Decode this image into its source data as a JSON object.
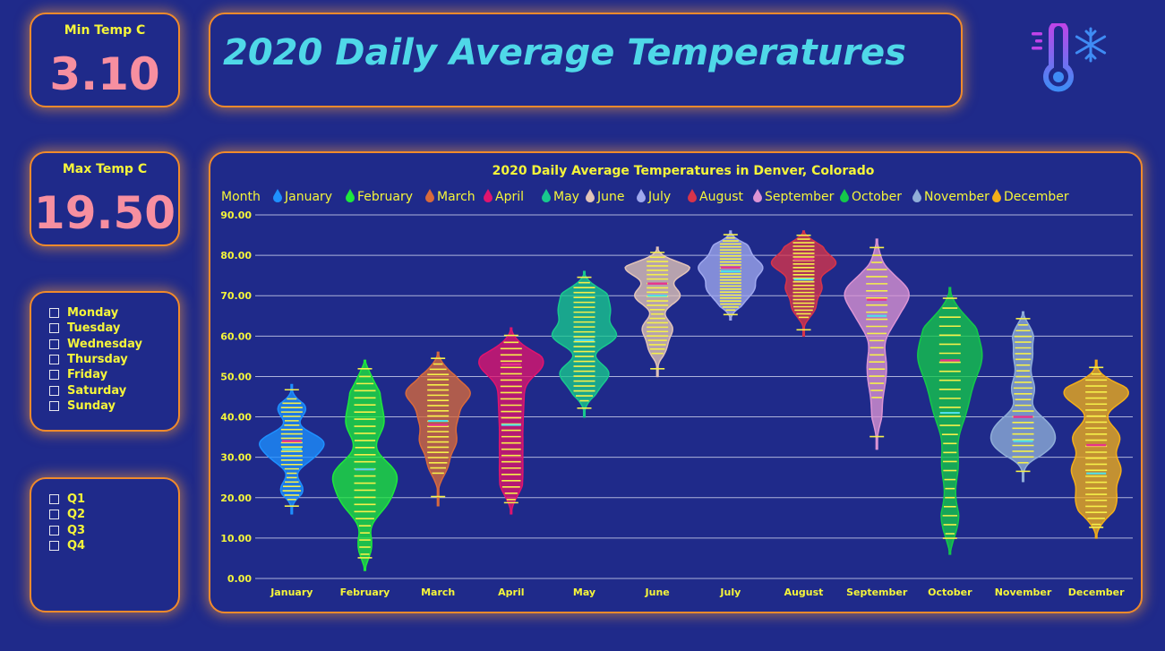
{
  "kpis": {
    "min_label": "Min Temp C",
    "min_value": "3.10",
    "max_label": "Max Temp C",
    "max_value": "19.50"
  },
  "header": {
    "title": "2020 Daily Average Temperatures"
  },
  "logo": {
    "icon": "thermometer-snowflake-icon"
  },
  "day_slicer": {
    "items": [
      "Monday",
      "Tuesday",
      "Wednesday",
      "Thursday",
      "Friday",
      "Saturday",
      "Sunday"
    ]
  },
  "quarter_slicer": {
    "items": [
      "Q1",
      "Q2",
      "Q3",
      "Q4"
    ]
  },
  "chart_data": {
    "type": "violin",
    "title": "2020 Daily Average Temperatures in Denver, Colorado",
    "legend_title": "Month",
    "legend_position": "top-left",
    "ylim": [
      0,
      90
    ],
    "yticks": [
      "0.00",
      "10.00",
      "20.00",
      "30.00",
      "40.00",
      "50.00",
      "60.00",
      "70.00",
      "80.00",
      "90.00"
    ],
    "grid": true,
    "categories": [
      "January",
      "February",
      "March",
      "April",
      "May",
      "June",
      "July",
      "August",
      "September",
      "October",
      "November",
      "December"
    ],
    "series": [
      {
        "name": "January",
        "color": "#1e90ff",
        "min": 16,
        "max": 48,
        "median": 34,
        "mean": 32,
        "modes": [
          [
            34,
            1.0
          ],
          [
            30,
            0.6
          ],
          [
            42,
            0.5
          ],
          [
            22,
            0.4
          ]
        ]
      },
      {
        "name": "February",
        "color": "#1ee83c",
        "min": 2,
        "max": 54,
        "median": 27,
        "mean": 27,
        "modes": [
          [
            26,
            1.0
          ],
          [
            19,
            0.7
          ],
          [
            38,
            0.6
          ],
          [
            45,
            0.4
          ],
          [
            52,
            0.35
          ],
          [
            6,
            0.35
          ]
        ]
      },
      {
        "name": "March",
        "color": "#d86a3c",
        "min": 18,
        "max": 56,
        "median": 38,
        "mean": 39,
        "modes": [
          [
            46,
            1.0
          ],
          [
            34,
            0.55
          ],
          [
            40,
            0.55
          ],
          [
            52,
            0.35
          ],
          [
            28,
            0.3
          ]
        ]
      },
      {
        "name": "April",
        "color": "#e0146e",
        "min": 16,
        "max": 62,
        "median": 53,
        "mean": 38,
        "modes": [
          [
            53,
            1.0
          ],
          [
            45,
            0.35
          ],
          [
            39,
            0.3
          ],
          [
            33,
            0.3
          ],
          [
            27,
            0.3
          ],
          [
            21,
            0.3
          ],
          [
            58,
            0.35
          ]
        ]
      },
      {
        "name": "May",
        "color": "#18c98e",
        "min": 40,
        "max": 76,
        "median": 59,
        "mean": 59,
        "modes": [
          [
            60,
            1.0
          ],
          [
            51,
            0.75
          ],
          [
            66,
            0.7
          ],
          [
            71,
            0.6
          ],
          [
            46,
            0.3
          ]
        ]
      },
      {
        "name": "June",
        "color": "#e2c4b8",
        "min": 50,
        "max": 82,
        "median": 73,
        "mean": 70,
        "modes": [
          [
            77,
            1.0
          ],
          [
            70,
            0.7
          ],
          [
            62,
            0.45
          ],
          [
            57,
            0.25
          ]
        ]
      },
      {
        "name": "July",
        "color": "#9fa8ee",
        "min": 64,
        "max": 86,
        "median": 77,
        "mean": 76,
        "modes": [
          [
            77,
            1.0
          ],
          [
            72,
            0.7
          ],
          [
            82,
            0.55
          ],
          [
            68,
            0.3
          ]
        ]
      },
      {
        "name": "August",
        "color": "#d8344a",
        "min": 60,
        "max": 86,
        "median": 79,
        "mean": 74,
        "modes": [
          [
            78,
            1.0
          ],
          [
            72,
            0.55
          ],
          [
            67,
            0.35
          ],
          [
            83,
            0.5
          ]
        ]
      },
      {
        "name": "September",
        "color": "#dc94d4",
        "min": 32,
        "max": 84,
        "median": 69,
        "mean": 65,
        "modes": [
          [
            71,
            1.0
          ],
          [
            64,
            0.5
          ],
          [
            54,
            0.25
          ],
          [
            48,
            0.2
          ],
          [
            40,
            0.15
          ],
          [
            81,
            0.2
          ]
        ]
      },
      {
        "name": "October",
        "color": "#14c94a",
        "min": 6,
        "max": 72,
        "median": 54,
        "mean": 41,
        "modes": [
          [
            55,
            1.0
          ],
          [
            64,
            0.75
          ],
          [
            47,
            0.5
          ],
          [
            40,
            0.4
          ],
          [
            28,
            0.3
          ],
          [
            15,
            0.25
          ],
          [
            9,
            0.25
          ]
        ]
      },
      {
        "name": "November",
        "color": "#90aed8",
        "min": 24,
        "max": 66,
        "median": 40,
        "mean": 34,
        "modes": [
          [
            33,
            1.0
          ],
          [
            38,
            0.85
          ],
          [
            47,
            0.45
          ],
          [
            55,
            0.35
          ],
          [
            62,
            0.45
          ]
        ]
      },
      {
        "name": "December",
        "color": "#f2ae1a",
        "min": 10,
        "max": 54,
        "median": 33,
        "mean": 26,
        "modes": [
          [
            46,
            1.0
          ],
          [
            35,
            0.7
          ],
          [
            27,
            0.7
          ],
          [
            20,
            0.5
          ],
          [
            15,
            0.3
          ]
        ]
      }
    ]
  }
}
